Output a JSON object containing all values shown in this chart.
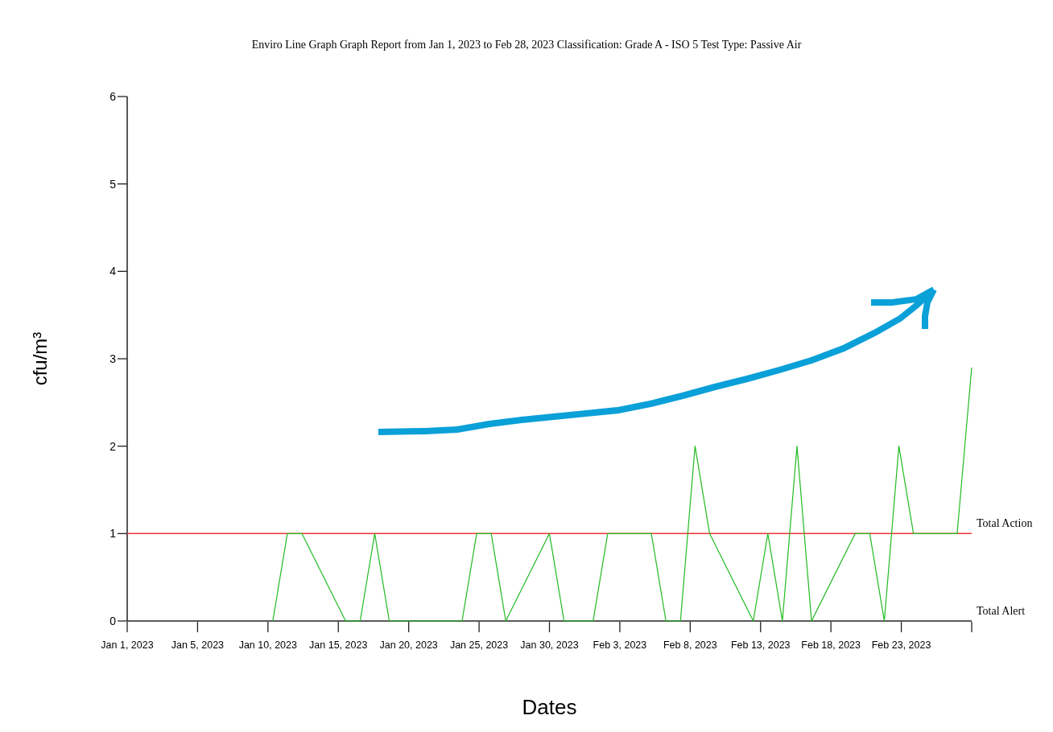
{
  "chart_data": {
    "type": "line",
    "subtitle": "Enviro Line Graph Graph Report from Jan 1, 2023 to Feb 28, 2023 Classification: Grade A - ISO 5 Test Type: Passive Air",
    "xlabel": "Dates",
    "ylabel": "cfu/m³",
    "xlim": [
      "2023-01-01",
      "2023-02-28"
    ],
    "xticks": [
      {
        "value": "2023-01-01",
        "label": "Jan 1, 2023"
      },
      {
        "value": "2023-01-05T20:00",
        "label": "Jan 5, 2023"
      },
      {
        "value": "2023-01-10T16:00",
        "label": "Jan 10, 2023"
      },
      {
        "value": "2023-01-15T12:00",
        "label": "Jan 15, 2023"
      },
      {
        "value": "2023-01-20T08:00",
        "label": "Jan 20, 2023"
      },
      {
        "value": "2023-01-25T04:00",
        "label": "Jan 25, 2023"
      },
      {
        "value": "2023-01-30",
        "label": "Jan 30, 2023"
      },
      {
        "value": "2023-02-03T20:00",
        "label": "Feb 3, 2023"
      },
      {
        "value": "2023-02-08T16:00",
        "label": "Feb 8, 2023"
      },
      {
        "value": "2023-02-13T12:00",
        "label": "Feb 13, 2023"
      },
      {
        "value": "2023-02-18T08:00",
        "label": "Feb 18, 2023"
      },
      {
        "value": "2023-02-23T04:00",
        "label": "Feb 23, 2023"
      },
      {
        "value": "2023-02-28",
        "label": null
      }
    ],
    "ylim": [
      0,
      6
    ],
    "yticks": [
      0,
      1,
      2,
      3,
      4,
      5,
      6
    ],
    "grid": false,
    "marker": "none",
    "line_style": "solid",
    "series": [
      {
        "color": "#22bb22",
        "x": [
          "2023-01-11",
          "2023-01-12",
          "2023-01-13",
          "2023-01-16",
          "2023-01-17",
          "2023-01-18",
          "2023-01-19",
          "2023-01-24",
          "2023-01-25",
          "2023-01-26",
          "2023-01-27",
          "2023-01-30",
          "2023-01-31",
          "2023-02-02",
          "2023-02-03",
          "2023-02-06",
          "2023-02-07",
          "2023-02-08",
          "2023-02-09",
          "2023-02-10",
          "2023-02-13",
          "2023-02-14",
          "2023-02-15",
          "2023-02-16",
          "2023-02-17",
          "2023-02-20",
          "2023-02-21",
          "2023-02-22",
          "2023-02-23",
          "2023-02-24",
          "2023-02-27",
          "2023-02-28"
        ],
        "values": [
          0,
          1,
          1,
          0,
          0,
          1,
          0,
          0,
          1,
          1,
          0,
          1,
          0,
          0,
          1,
          1,
          0,
          0,
          2,
          1,
          0,
          1,
          0,
          2,
          0,
          1,
          1,
          0,
          2,
          1,
          1,
          2.9
        ]
      }
    ],
    "ref_lines": [
      {
        "axis": "y",
        "value": 1,
        "label": "Total Action",
        "color": "#ee3333"
      }
    ],
    "annotations": [
      "Total Alert"
    ]
  }
}
